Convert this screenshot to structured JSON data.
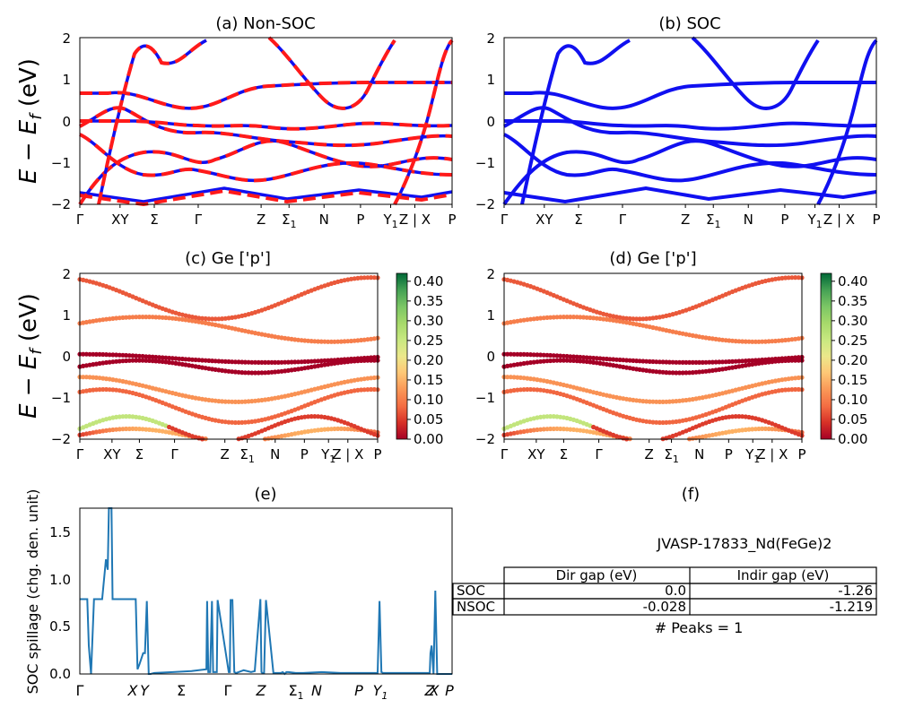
{
  "figure": {
    "material_id": "JVASP-17833_Nd(FeGe)2",
    "peaks_text": "# Peaks = 1",
    "ylabel_band": "E − E_f (eV)",
    "ylabel_spillage": "SOC spillage (chg. den. unit)"
  },
  "panels": {
    "a": {
      "title": "(a) Non-SOC"
    },
    "b": {
      "title": "(b) SOC"
    },
    "c": {
      "title": "(c)  Ge ['p']"
    },
    "d": {
      "title": "(d) Ge ['p']"
    },
    "e": {
      "title": "(e)"
    },
    "f": {
      "title": "(f)"
    }
  },
  "kpath": {
    "labels": [
      "Γ",
      "XY",
      "Σ",
      "Γ",
      "Z",
      "Σ1",
      "N",
      "P",
      "Y1",
      "Z | X",
      "P"
    ],
    "positions": [
      0,
      0.108,
      0.2,
      0.318,
      0.487,
      0.562,
      0.656,
      0.754,
      0.835,
      0.9,
      1.0
    ],
    "spillage_labels": [
      "Γ",
      "X",
      "Y",
      "Σ",
      "Γ",
      "Z",
      "Σ1",
      "N",
      "P",
      "Y1",
      "Z",
      "X",
      "P"
    ]
  },
  "table": {
    "headers": [
      "",
      "Dir gap (eV)",
      "Indir gap (eV)"
    ],
    "rows": [
      {
        "label": "SOC",
        "dir": "0.0",
        "indir": "-1.26"
      },
      {
        "label": "NSOC",
        "dir": "-0.028",
        "indir": "-1.219"
      }
    ]
  },
  "colorbar": {
    "ticks": [
      "0.00",
      "0.05",
      "0.10",
      "0.15",
      "0.20",
      "0.25",
      "0.30",
      "0.35",
      "0.40"
    ]
  },
  "colors": {
    "soc_band": "#1010f0",
    "nonsoc_band": "#ff1a1a",
    "spillage_line": "#1f77b4"
  },
  "chart_data": [
    {
      "type": "line",
      "panel": "a",
      "title": "(a) Non-SOC",
      "ylabel": "E − E_f (eV)",
      "ylim": [
        -2,
        2
      ],
      "yticks": [
        -2,
        -1,
        0,
        1,
        2
      ],
      "series_styles": [
        "SOC solid blue",
        "Non-SOC dashed red"
      ],
      "bands_at_gamma": [
        -1.75,
        -1.95,
        -0.3,
        -0.15,
        0.65,
        0.65
      ]
    },
    {
      "type": "line",
      "panel": "b",
      "title": "(b) SOC",
      "ylim": [
        -2,
        2
      ],
      "yticks": [
        -2,
        -1,
        0,
        1,
        2
      ]
    },
    {
      "type": "scatter",
      "panel": "c",
      "title": "(c)  Ge ['p']",
      "ylim": [
        -2,
        2
      ],
      "color_range": [
        0.0,
        0.42
      ],
      "colormap": "RdYlGn"
    },
    {
      "type": "scatter",
      "panel": "d",
      "title": "(d) Ge ['p']",
      "ylim": [
        -2,
        2
      ],
      "color_range": [
        0.0,
        0.42
      ],
      "colormap": "RdYlGn"
    },
    {
      "type": "line",
      "panel": "e",
      "title": "(e)",
      "ylabel": "SOC spillage (chg. den. unit)",
      "ylim": [
        0,
        1.75
      ],
      "yticks": [
        0.0,
        0.5,
        1.0,
        1.5
      ],
      "x": [
        0,
        0.02,
        0.024,
        0.03,
        0.038,
        0.045,
        0.05,
        0.06,
        0.07,
        0.075,
        0.078,
        0.085,
        0.088,
        0.092,
        0.094,
        0.1,
        0.12,
        0.15,
        0.155,
        0.16,
        0.17,
        0.175,
        0.18,
        0.185,
        0.19,
        0.2,
        0.25,
        0.3,
        0.34,
        0.342,
        0.345,
        0.35,
        0.355,
        0.358,
        0.36,
        0.368,
        0.37,
        0.4,
        0.403,
        0.405,
        0.41,
        0.415,
        0.42,
        0.44,
        0.46,
        0.47,
        0.485,
        0.488,
        0.49,
        0.495,
        0.5,
        0.52,
        0.54,
        0.545,
        0.55,
        0.555,
        0.56,
        0.58,
        0.6,
        0.65,
        0.7,
        0.75,
        0.8,
        0.805,
        0.81,
        0.815,
        0.82,
        0.85,
        0.9,
        0.94,
        0.942,
        0.945,
        0.95,
        0.955,
        0.96,
        0.965,
        1.0
      ],
      "y": [
        0.79,
        0.79,
        0.3,
        0.0,
        0.79,
        0.79,
        0.79,
        0.79,
        1.21,
        1.1,
        1.75,
        1.75,
        0.79,
        0.79,
        0.79,
        0.79,
        0.79,
        0.79,
        0.05,
        0.1,
        0.22,
        0.22,
        0.77,
        0.0,
        0.0,
        0.01,
        0.02,
        0.03,
        0.05,
        0.77,
        0.02,
        0.02,
        0.77,
        0.02,
        0.02,
        0.02,
        0.78,
        0.02,
        0.02,
        0.78,
        0.78,
        0.02,
        0.01,
        0.04,
        0.02,
        0.03,
        0.79,
        0.02,
        0.01,
        0.01,
        0.78,
        0.01,
        0.01,
        0.02,
        0.0,
        0.02,
        0.02,
        0.01,
        0.01,
        0.02,
        0.01,
        0.01,
        0.01,
        0.77,
        0.02,
        0.01,
        0.01,
        0.01,
        0.01,
        0.01,
        0.22,
        0.3,
        0.0,
        0.88,
        0.0,
        0.0,
        0.0
      ]
    }
  ]
}
